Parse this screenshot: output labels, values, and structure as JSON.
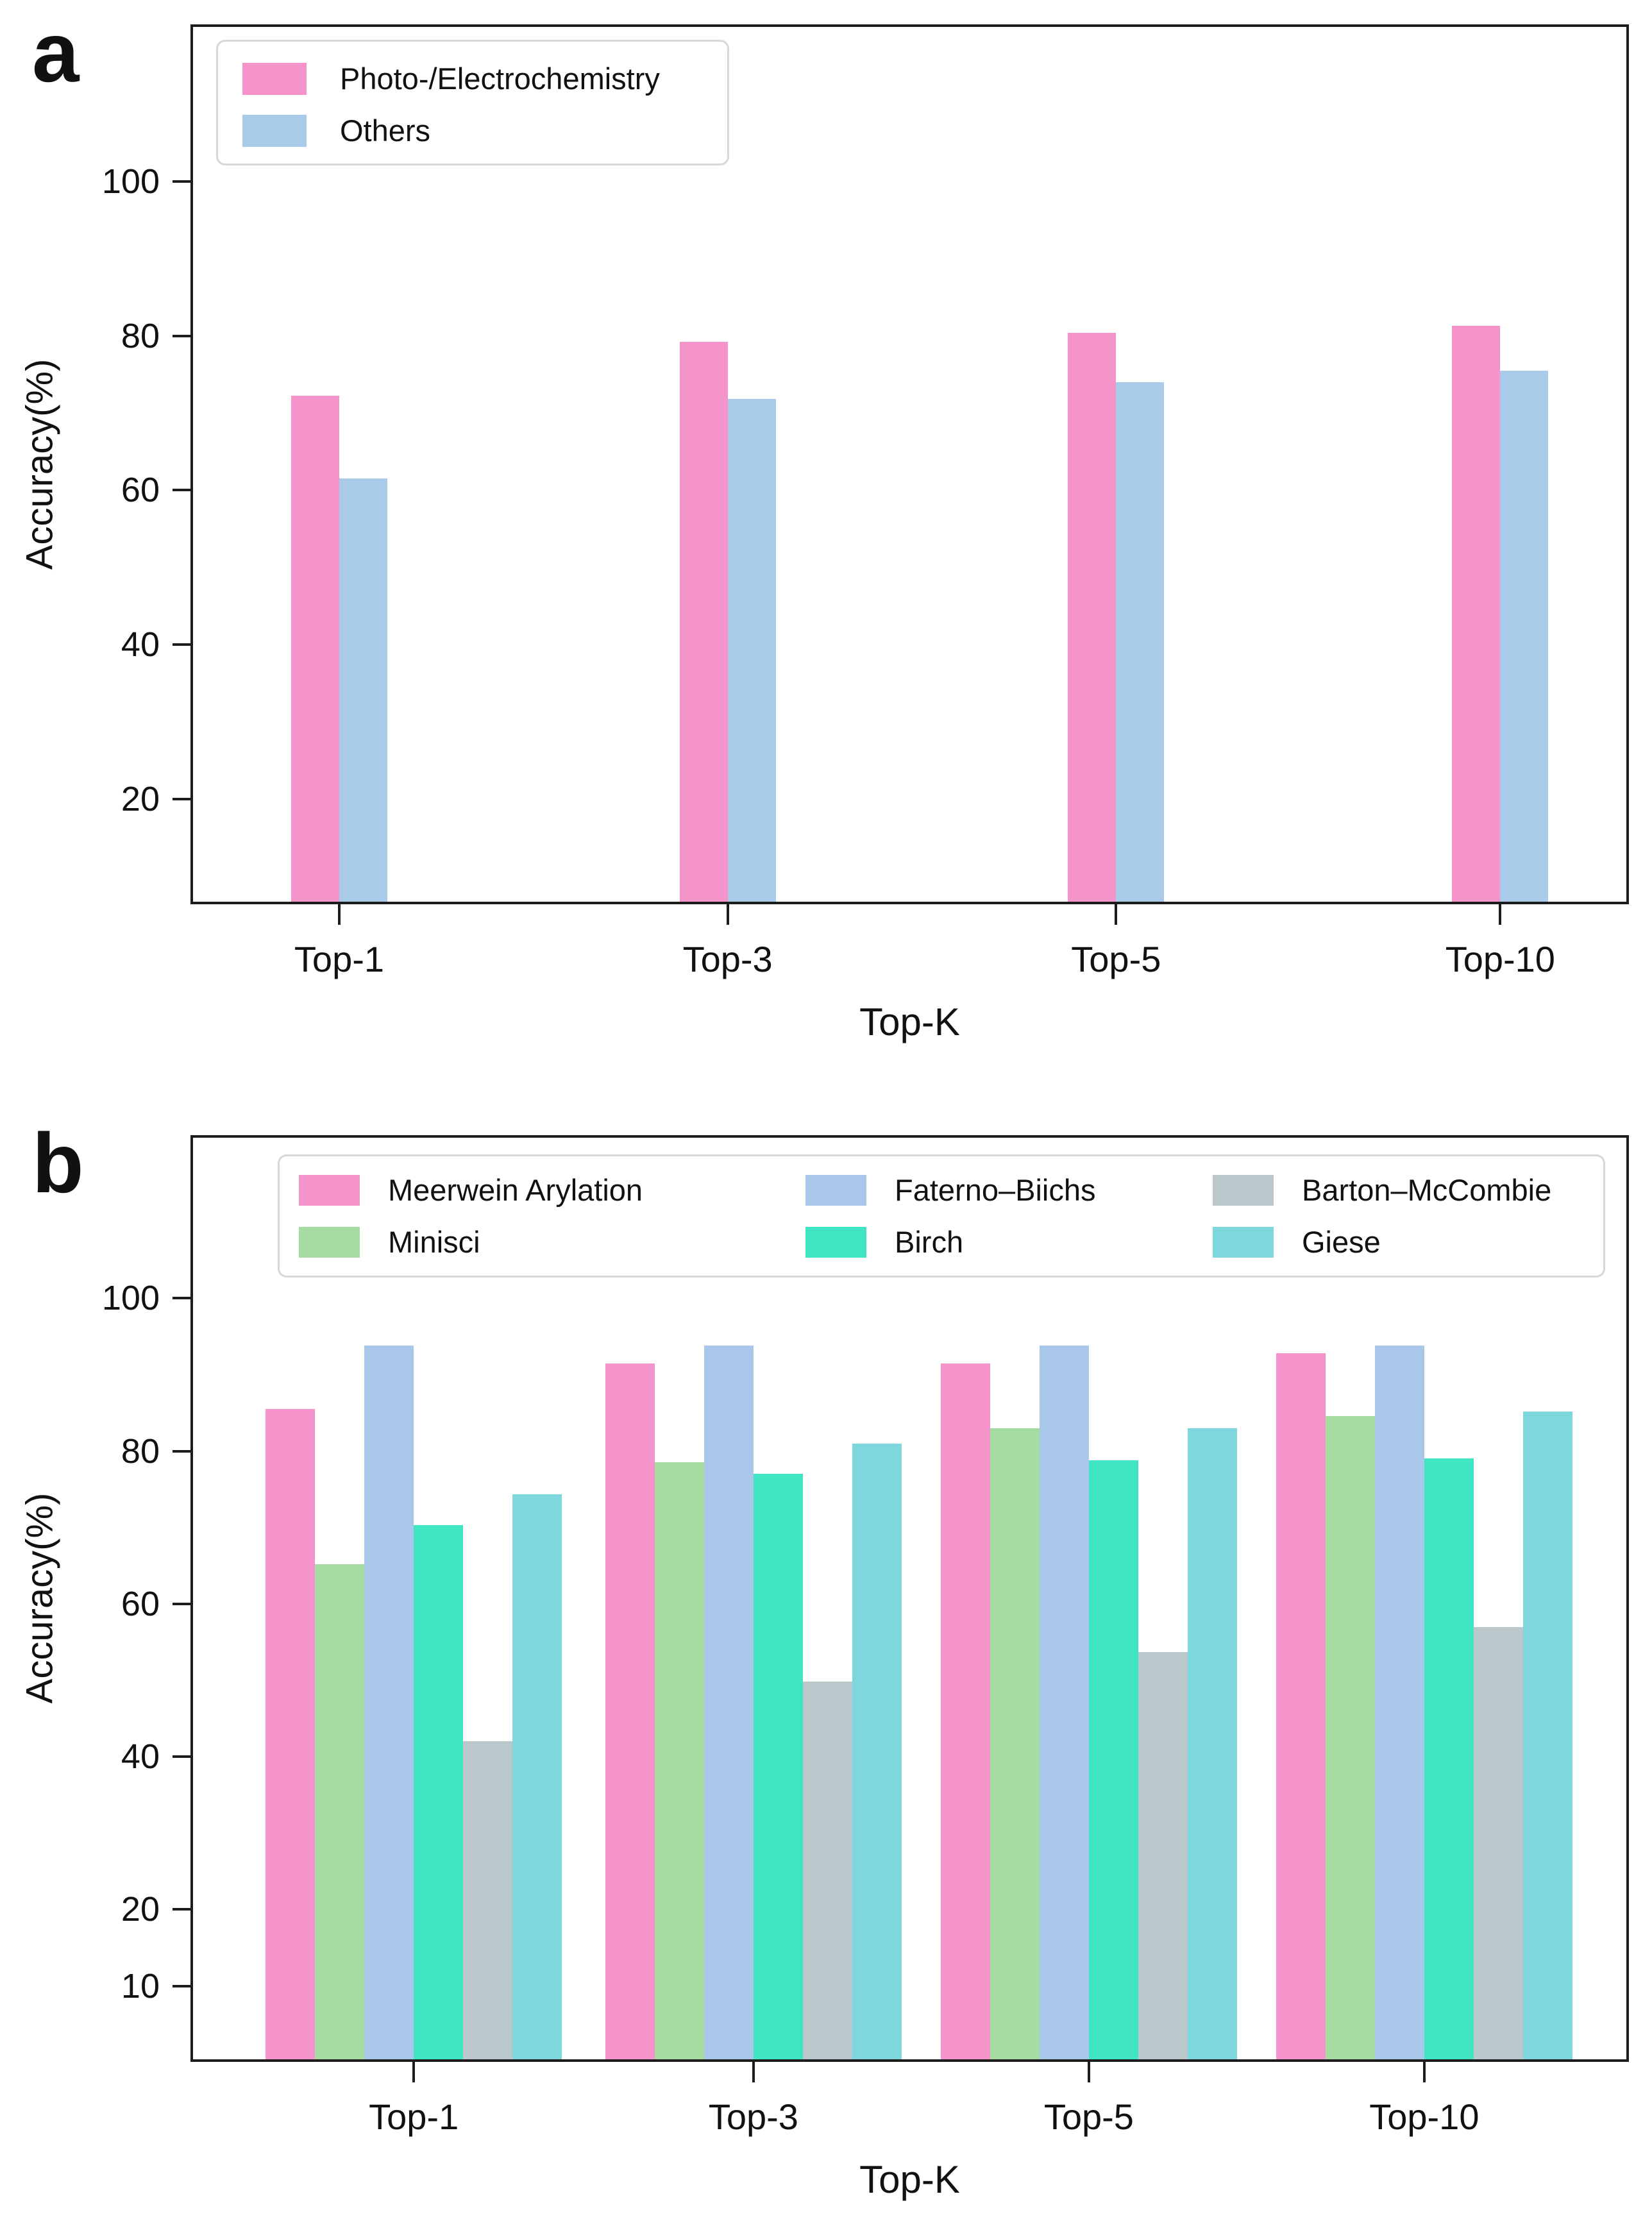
{
  "figure": {
    "panel_a_letter": "a",
    "panel_b_letter": "b"
  },
  "chart_data": [
    {
      "type": "bar",
      "panel": "a",
      "title": "",
      "xlabel": "Top-K",
      "ylabel": "Accuracy(%)",
      "categories": [
        "Top-1",
        "Top-3",
        "Top-5",
        "Top-10"
      ],
      "yticks": [
        100,
        80,
        60,
        40,
        20
      ],
      "ylim": [
        6.7,
        120
      ],
      "grid": false,
      "legend_position": "upper-left-inside",
      "series": [
        {
          "name": "Photo-/Electrochemistry",
          "color": "#f593cb",
          "values": [
            72.2,
            79.2,
            80.4,
            81.3
          ]
        },
        {
          "name": "Others",
          "color": "#a9cbe9",
          "values": [
            61.5,
            71.8,
            74.0,
            75.5
          ]
        }
      ]
    },
    {
      "type": "bar",
      "panel": "b",
      "title": "",
      "xlabel": "Top-K",
      "ylabel": "Accuracy(%)",
      "categories": [
        "Top-1",
        "Top-3",
        "Top-5",
        "Top-10"
      ],
      "yticks": [
        100,
        80,
        60,
        40,
        20,
        10
      ],
      "ylim": [
        0.4,
        121
      ],
      "grid": false,
      "legend_position": "top-inside-3-columns",
      "series": [
        {
          "name": "Meerwein Arylation",
          "color": "#f593cb",
          "values": [
            85.5,
            91.5,
            91.5,
            92.8
          ]
        },
        {
          "name": "Minisci",
          "color": "#a6dca2",
          "values": [
            65.2,
            78.5,
            83.0,
            84.6
          ]
        },
        {
          "name": "Faterno–Biichs",
          "color": "#a9c7e8",
          "values": [
            93.8,
            93.8,
            93.8,
            93.8
          ]
        },
        {
          "name": "Birch",
          "color": "#41e4c3",
          "values": [
            70.3,
            77.0,
            78.8,
            79.0
          ]
        },
        {
          "name": "Barton–McCombie",
          "color": "#bac7cb",
          "values": [
            42.0,
            49.8,
            53.7,
            57.0
          ]
        },
        {
          "name": "Giese",
          "color": "#7dd7dc",
          "values": [
            74.3,
            81.0,
            83.0,
            85.2
          ]
        }
      ]
    }
  ]
}
